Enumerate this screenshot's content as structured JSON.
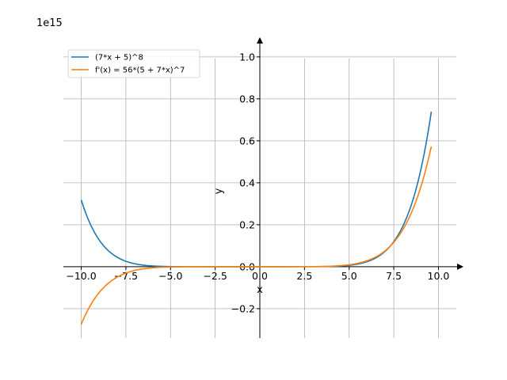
{
  "chart_data": {
    "type": "line",
    "offset_text": "1e15",
    "xlabel": "x",
    "ylabel": "y",
    "xlim": [
      -11.0,
      11.0
    ],
    "ylim": [
      -0.34,
      1.09
    ],
    "x_ticks": [
      -10.0,
      -7.5,
      -5.0,
      -2.5,
      0.0,
      2.5,
      5.0,
      7.5,
      10.0
    ],
    "x_tick_labels": [
      "−10.0",
      "−7.5",
      "−5.0",
      "−2.5",
      "0.0",
      "2.5",
      "5.0",
      "7.5",
      "10.0"
    ],
    "y_ticks": [
      -0.2,
      0.0,
      0.2,
      0.4,
      0.6,
      0.8,
      1.0
    ],
    "y_tick_labels": [
      "−0.2",
      "0.0",
      "0.2",
      "0.4",
      "0.6",
      "0.8",
      "1.0"
    ],
    "grid": true,
    "legend_position": "top-left",
    "x_range": [
      -10.0,
      9.6
    ],
    "series": [
      {
        "name": "(7*x + 5)^8",
        "color": "#1f77b4",
        "expr": "(7x+5)^8",
        "sample_points": [
          [
            -10,
            0.318
          ],
          [
            -7.5,
            0.024
          ],
          [
            -5,
            0.0007
          ],
          [
            0,
            0.0
          ],
          [
            5,
            0.006
          ],
          [
            7.5,
            0.11
          ],
          [
            9.6,
            0.736
          ]
        ]
      },
      {
        "name": "f'(x) = 56*(5 + 7*x)^7",
        "color": "#ff7f0e",
        "expr": "56(5+7x)^7",
        "sample_points": [
          [
            -10,
            -0.275
          ],
          [
            -7.5,
            -0.027
          ],
          [
            -5,
            -0.0013
          ],
          [
            0,
            0.0
          ],
          [
            5,
            0.009
          ],
          [
            7.5,
            0.11
          ],
          [
            9.6,
            0.573
          ]
        ]
      }
    ]
  }
}
